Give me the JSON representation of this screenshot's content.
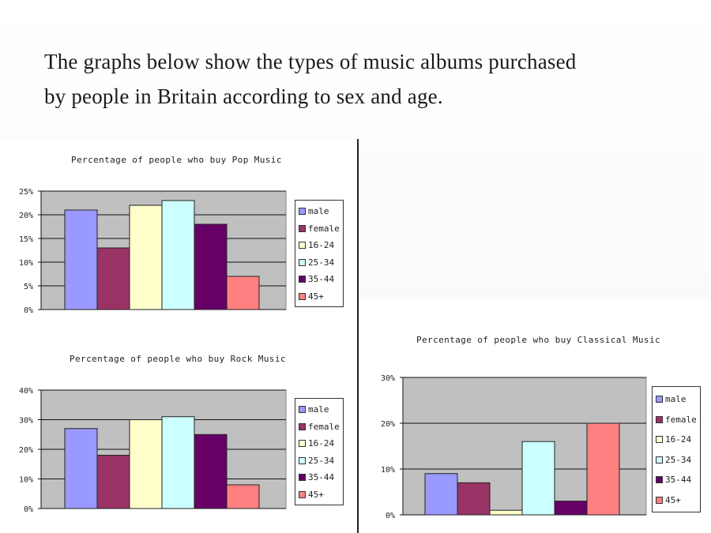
{
  "heading": {
    "line1": "The graphs below show the types of music albums purchased",
    "line2": "by people in Britain according to sex and age."
  },
  "legend": [
    "male",
    "female",
    "16-24",
    "25-34",
    "35-44",
    "45+"
  ],
  "colors": {
    "male": "#9999ff",
    "female": "#993366",
    "16-24": "#ffffcc",
    "25-34": "#ccffff",
    "35-44": "#660066",
    "45+": "#ff8080",
    "plot_background": "#c0c0c0"
  },
  "chart_data": [
    {
      "type": "bar",
      "title": "Percentage of people who buy Pop Music",
      "categories": [
        "male",
        "female",
        "16-24",
        "25-34",
        "35-44",
        "45+"
      ],
      "values": [
        21,
        13,
        22,
        23,
        18,
        7
      ],
      "ylim": [
        0,
        25
      ],
      "yticks": [
        "0%",
        "5%",
        "10%",
        "15%",
        "20%",
        "25%"
      ],
      "grid": true,
      "legend_position": "right"
    },
    {
      "type": "bar",
      "title": "Percentage of people who buy Rock Music",
      "categories": [
        "male",
        "female",
        "16-24",
        "25-34",
        "35-44",
        "45+"
      ],
      "values": [
        27,
        18,
        30,
        31,
        25,
        8
      ],
      "ylim": [
        0,
        40
      ],
      "yticks": [
        "0%",
        "10%",
        "20%",
        "30%",
        "40%"
      ],
      "grid": true,
      "legend_position": "right"
    },
    {
      "type": "bar",
      "title": "Percentage of people who buy Classical Music",
      "categories": [
        "male",
        "female",
        "16-24",
        "25-34",
        "35-44",
        "45+"
      ],
      "values": [
        9,
        7,
        1,
        16,
        3,
        20
      ],
      "ylim": [
        0,
        30
      ],
      "yticks": [
        "0%",
        "10%",
        "20%",
        "30%"
      ],
      "grid": true,
      "legend_position": "right"
    }
  ]
}
